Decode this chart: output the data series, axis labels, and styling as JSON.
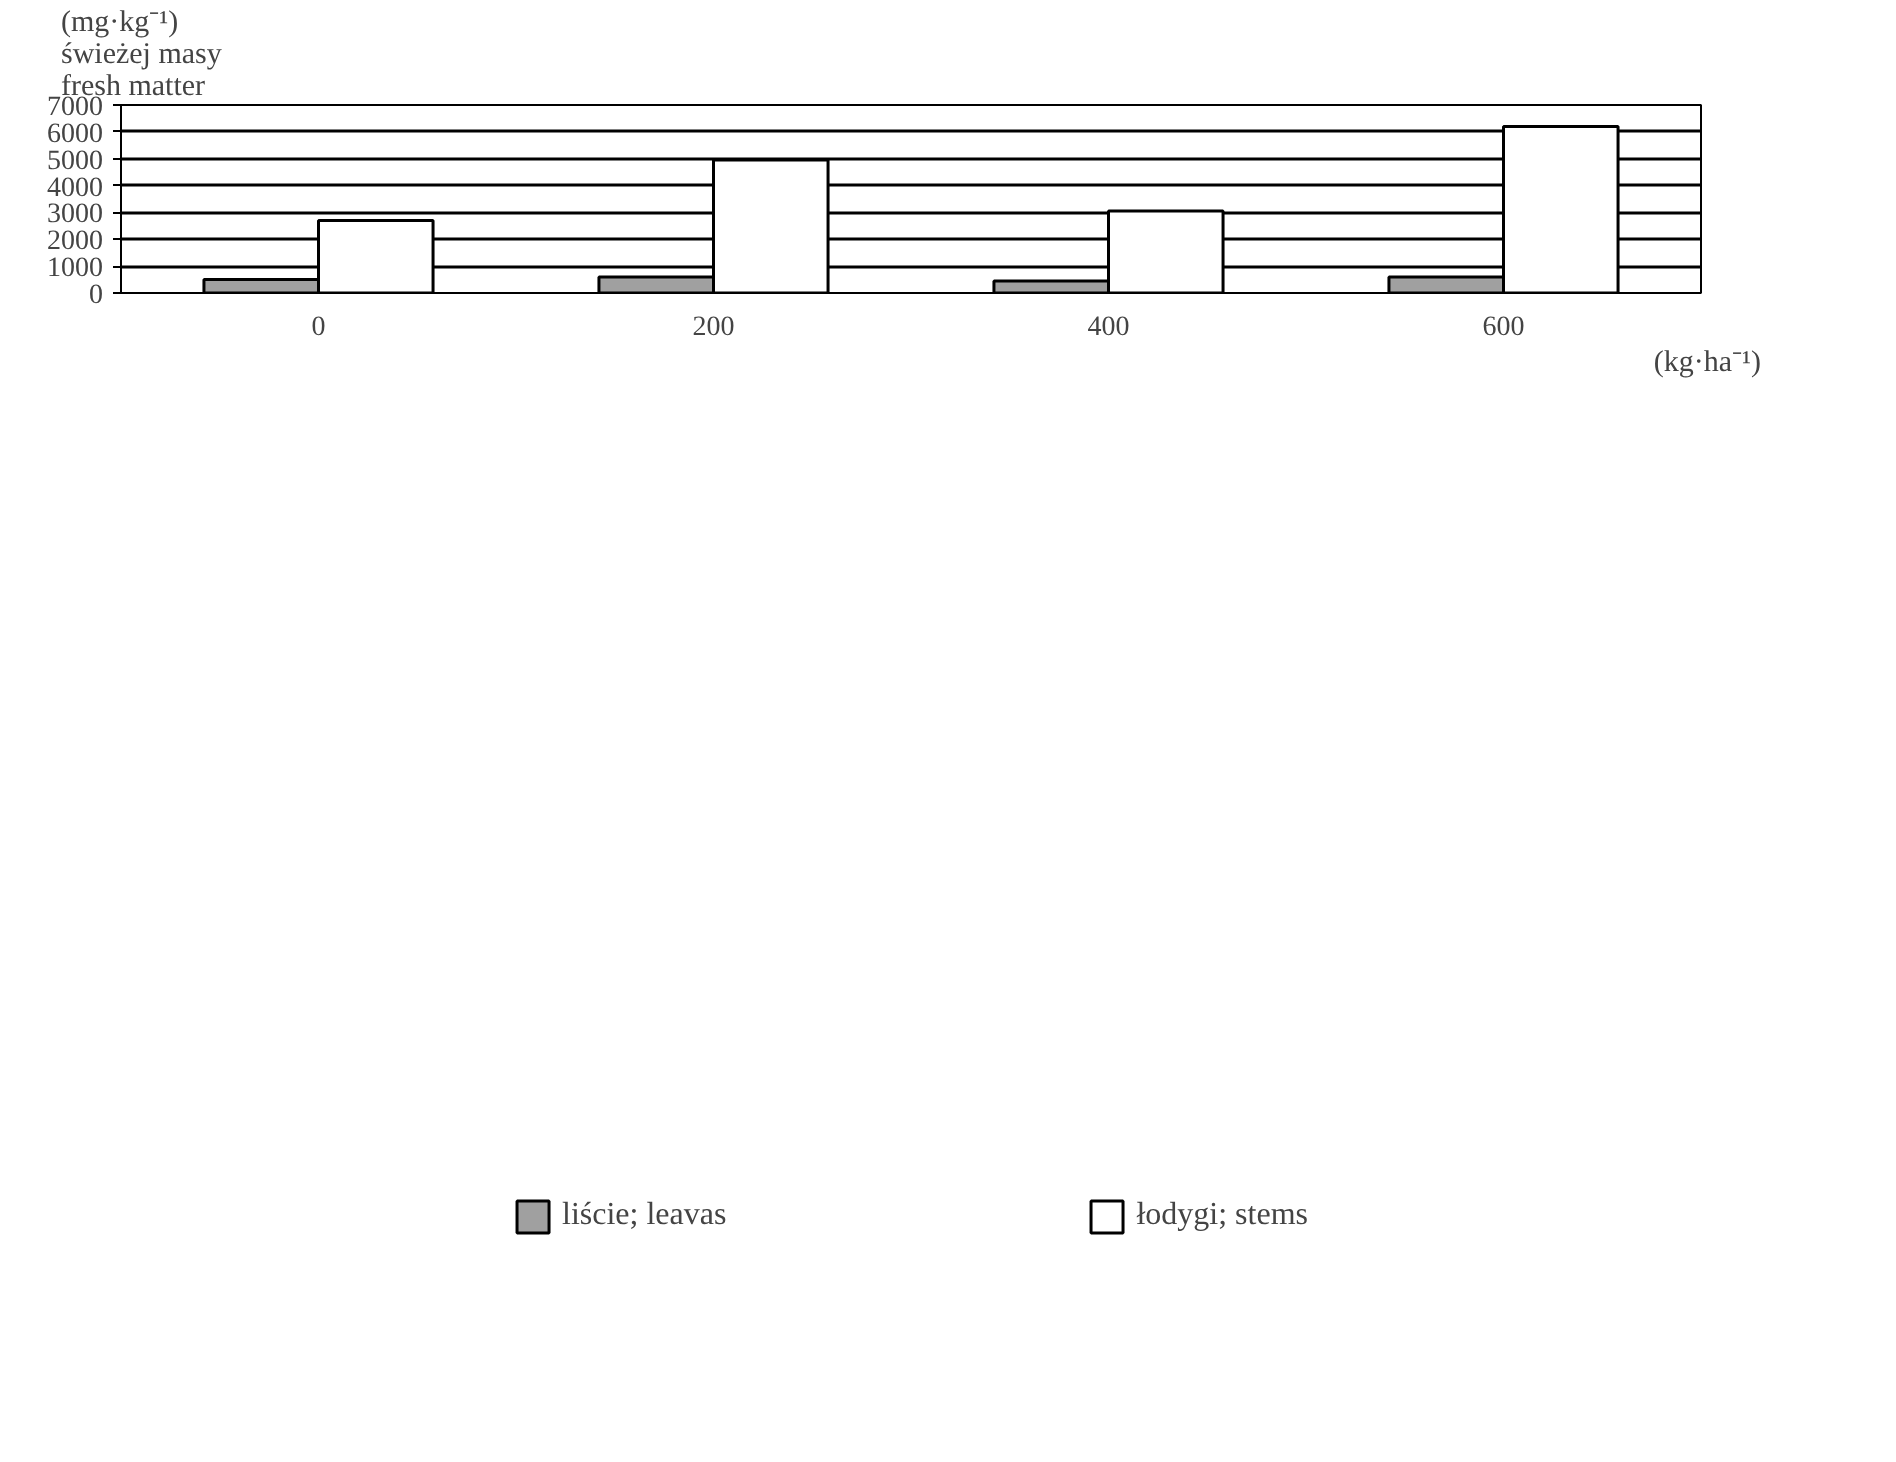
{
  "chart_data": {
    "type": "bar",
    "ylabel": "(mg·kg⁻¹)\nświeżej masy\nfresh matter",
    "xlabel": "(kg·ha⁻¹)",
    "categories": [
      "0",
      "200",
      "400",
      "600"
    ],
    "series": [
      {
        "name": "liście; leavas",
        "color": "#a0a0a0",
        "values": [
          500,
          600,
          450,
          600
        ]
      },
      {
        "name": "łodygi; stems",
        "color": "#ffffff",
        "values": [
          2700,
          4950,
          3050,
          6200
        ]
      }
    ],
    "ylim": [
      0,
      7000
    ],
    "yticks": [
      0,
      1000,
      2000,
      3000,
      4000,
      5000,
      6000,
      7000
    ],
    "grid": "y",
    "legend": "bottom"
  }
}
